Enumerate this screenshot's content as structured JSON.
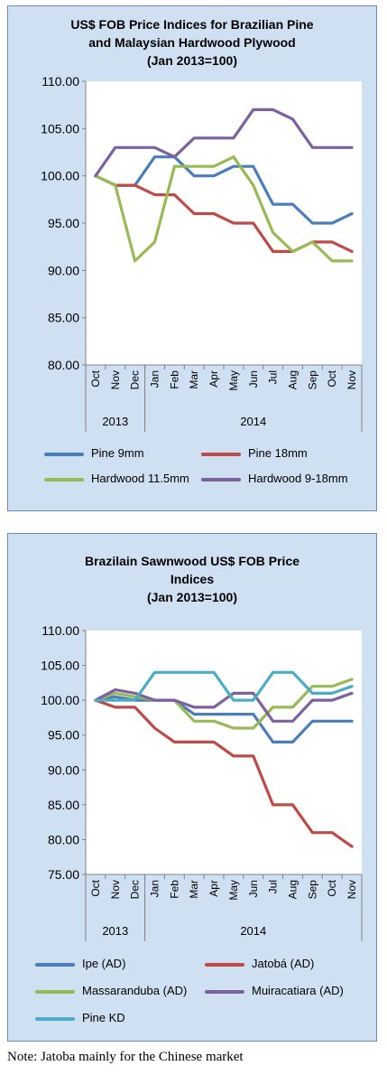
{
  "note": "Note: Jatoba mainly for the Chinese market",
  "chart_data": [
    {
      "type": "line",
      "title_lines": [
        "US$ FOB Price Indices for Brazilian Pine",
        "and Malaysian Hardwood Plywood",
        "(Jan 2013=100)"
      ],
      "categories": [
        "Oct",
        "Nov",
        "Dec",
        "Jan",
        "Feb",
        "Mar",
        "Apr",
        "May",
        "Jun",
        "Jul",
        "Aug",
        "Sep",
        "Oct",
        "Nov"
      ],
      "year_groups": [
        {
          "label": "2013",
          "count": 3
        },
        {
          "label": "2014",
          "count": 11
        }
      ],
      "ylim": [
        80,
        110
      ],
      "yticks": [
        "80.00",
        "85.00",
        "90.00",
        "95.00",
        "100.00",
        "105.00",
        "110.00"
      ],
      "grid": false,
      "legend_position": "bottom",
      "series": [
        {
          "name": "Pine 9mm",
          "color": "#4a7ebb",
          "values": [
            100,
            99,
            99,
            102,
            102,
            100,
            100,
            101,
            101,
            97,
            97,
            95,
            95,
            96
          ]
        },
        {
          "name": "Pine 18mm",
          "color": "#be4b48",
          "values": [
            100,
            99,
            99,
            98,
            98,
            96,
            96,
            95,
            95,
            92,
            92,
            93,
            93,
            92
          ]
        },
        {
          "name": "Hardwood 11.5mm",
          "color": "#98b954",
          "values": [
            100,
            99,
            91,
            93,
            101,
            101,
            101,
            102,
            99,
            94,
            92,
            93,
            91,
            91
          ]
        },
        {
          "name": "Hardwood 9-18mm",
          "color": "#7d60a0",
          "values": [
            100,
            103,
            103,
            103,
            102,
            104,
            104,
            104,
            107,
            107,
            106,
            103,
            103,
            103
          ]
        }
      ]
    },
    {
      "type": "line",
      "title_lines": [
        "Brazilain Sawnwood US$ FOB Price",
        "Indices",
        "(Jan 2013=100)"
      ],
      "categories": [
        "Oct",
        "Nov",
        "Dec",
        "Jan",
        "Feb",
        "Mar",
        "Apr",
        "May",
        "Jun",
        "Jul",
        "Aug",
        "Sep",
        "Oct",
        "Nov"
      ],
      "year_groups": [
        {
          "label": "2013",
          "count": 3
        },
        {
          "label": "2014",
          "count": 11
        }
      ],
      "ylim": [
        75,
        110
      ],
      "yticks": [
        "75.00",
        "80.00",
        "85.00",
        "90.00",
        "95.00",
        "100.00",
        "105.00",
        "110.00"
      ],
      "grid": false,
      "legend_position": "bottom",
      "series": [
        {
          "name": "Ipe (AD)",
          "color": "#4a7ebb",
          "values": [
            100,
            100.5,
            100,
            100,
            100,
            98,
            98,
            98,
            98,
            94,
            94,
            97,
            97,
            97
          ]
        },
        {
          "name": "Jatobá (AD)",
          "color": "#be4b48",
          "values": [
            100,
            99,
            99,
            96,
            94,
            94,
            94,
            92,
            92,
            85,
            85,
            81,
            81,
            79
          ]
        },
        {
          "name": "Massaranduba (AD)",
          "color": "#98b954",
          "values": [
            100,
            101,
            100.5,
            100,
            100,
            97,
            97,
            96,
            96,
            99,
            99,
            102,
            102,
            103
          ]
        },
        {
          "name": "Muiracatiara (AD)",
          "color": "#7d60a0",
          "values": [
            100,
            101.5,
            101,
            100,
            100,
            99,
            99,
            101,
            101,
            97,
            97,
            100,
            100,
            101
          ]
        },
        {
          "name": "Pine KD",
          "color": "#4bacc6",
          "values": [
            100,
            100,
            100,
            104,
            104,
            104,
            104,
            100,
            100,
            104,
            104,
            101,
            101,
            102
          ]
        }
      ]
    }
  ]
}
